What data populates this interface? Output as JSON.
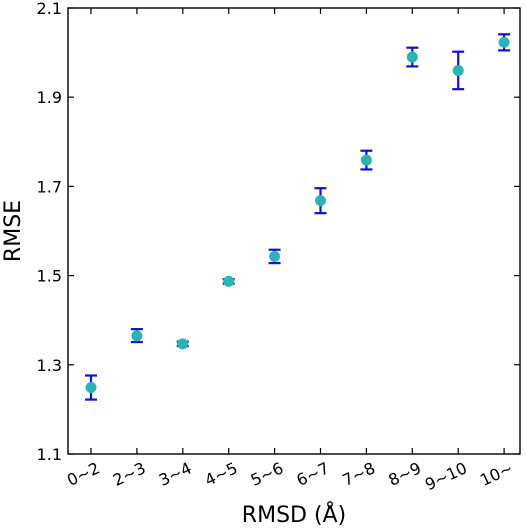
{
  "chart_data": {
    "type": "scatter",
    "title": "",
    "xlabel": "RMSD (Å)",
    "ylabel": "RMSE",
    "categories": [
      "0~2",
      "2~3",
      "3~4",
      "4~5",
      "5~6",
      "6~7",
      "7~8",
      "8~9",
      "9~10",
      "10~"
    ],
    "series": [
      {
        "values": [
          1.249,
          1.365,
          1.347,
          1.487,
          1.543,
          1.668,
          1.759,
          1.99,
          1.96,
          2.023
        ],
        "err_low": [
          1.222,
          1.351,
          1.342,
          1.482,
          1.528,
          1.64,
          1.738,
          1.969,
          1.918,
          2.005
        ],
        "err_high": [
          1.276,
          1.38,
          1.352,
          1.492,
          1.558,
          1.696,
          1.78,
          2.011,
          2.002,
          2.041
        ]
      }
    ],
    "ylim": [
      1.1,
      2.1
    ],
    "yticks": [
      1.1,
      1.3,
      1.5,
      1.7,
      1.9,
      2.1
    ],
    "ytick_labels": [
      "1.1",
      "1.3",
      "1.5",
      "1.7",
      "1.9",
      "2.1"
    ],
    "grid": false,
    "legend": "none",
    "colors": {
      "marker": "#2ab5b5",
      "errorbar": "#1010d8",
      "axis": "#000000"
    }
  }
}
